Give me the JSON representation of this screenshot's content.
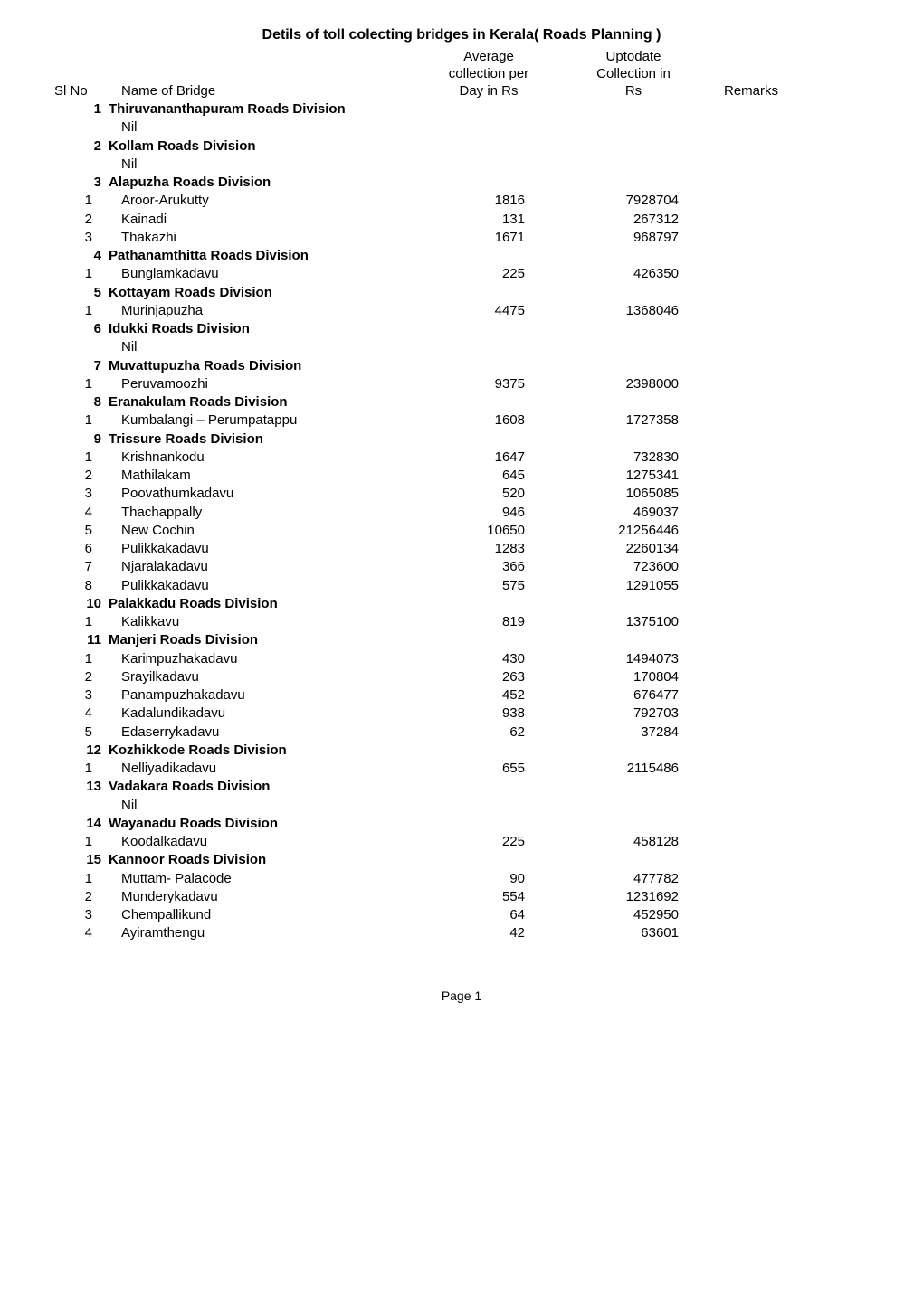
{
  "title": "Detils of toll colecting bridges in Kerala( Roads Planning )",
  "headers": {
    "slno": "Sl No",
    "name": "Name of Bridge",
    "avg_l1": "Average",
    "avg_l2": "collection per",
    "avg_l3": "Day in Rs",
    "upd_l1": "Uptodate",
    "upd_l2": "Collection in",
    "upd_l3": "Rs",
    "remarks": "Remarks"
  },
  "nil_label": "Nil",
  "footer": "Page 1",
  "sections": [
    {
      "num": "1",
      "name": "Thiruvananthapuram Roads Division",
      "nil": true,
      "rows": []
    },
    {
      "num": "2",
      "name": "Kollam Roads Division",
      "nil": true,
      "rows": []
    },
    {
      "num": "3",
      "name": "Alapuzha Roads Division",
      "nil": false,
      "rows": [
        {
          "n": "1",
          "name": "Aroor-Arukutty",
          "avg": "1816",
          "upd": "7928704"
        },
        {
          "n": "2",
          "name": "Kainadi",
          "avg": "131",
          "upd": "267312"
        },
        {
          "n": "3",
          "name": "Thakazhi",
          "avg": "1671",
          "upd": "968797"
        }
      ]
    },
    {
      "num": "4",
      "name": "Pathanamthitta Roads Division",
      "nil": false,
      "rows": [
        {
          "n": "1",
          "name": "Bunglamkadavu",
          "avg": "225",
          "upd": "426350"
        }
      ]
    },
    {
      "num": "5",
      "name": "Kottayam Roads Division",
      "nil": false,
      "rows": [
        {
          "n": "1",
          "name": "Murinjapuzha",
          "avg": "4475",
          "upd": "1368046"
        }
      ]
    },
    {
      "num": "6",
      "name": "Idukki Roads Division",
      "nil": true,
      "rows": []
    },
    {
      "num": "7",
      "name": "Muvattupuzha Roads Division",
      "nil": false,
      "rows": [
        {
          "n": "1",
          "name": "Peruvamoozhi",
          "avg": "9375",
          "upd": "2398000"
        }
      ]
    },
    {
      "num": "8",
      "name": "Eranakulam Roads Division",
      "nil": false,
      "rows": [
        {
          "n": "1",
          "name": "Kumbalangi – Perumpatappu",
          "avg": "1608",
          "upd": "1727358"
        }
      ]
    },
    {
      "num": "9",
      "name": "Trissure Roads Division",
      "nil": false,
      "rows": [
        {
          "n": "1",
          "name": "Krishnankodu",
          "avg": "1647",
          "upd": "732830"
        },
        {
          "n": "2",
          "name": "Mathilakam",
          "avg": "645",
          "upd": "1275341"
        },
        {
          "n": "3",
          "name": "Poovathumkadavu",
          "avg": "520",
          "upd": "1065085"
        },
        {
          "n": "4",
          "name": "Thachappally",
          "avg": "946",
          "upd": "469037"
        },
        {
          "n": "5",
          "name": "New Cochin",
          "avg": "10650",
          "upd": "21256446"
        },
        {
          "n": "6",
          "name": "Pulikkakadavu",
          "avg": "1283",
          "upd": "2260134"
        },
        {
          "n": "7",
          "name": "Njaralakadavu",
          "avg": "366",
          "upd": "723600"
        },
        {
          "n": "8",
          "name": "Pulikkakadavu",
          "avg": "575",
          "upd": "1291055"
        }
      ]
    },
    {
      "num": "10",
      "name": "Palakkadu Roads Division",
      "nil": false,
      "rows": [
        {
          "n": "1",
          "name": "Kalikkavu",
          "avg": "819",
          "upd": "1375100"
        }
      ]
    },
    {
      "num": "11",
      "name": "Manjeri Roads Division",
      "nil": false,
      "rows": [
        {
          "n": "1",
          "name": "Karimpuzhakadavu",
          "avg": "430",
          "upd": "1494073"
        },
        {
          "n": "2",
          "name": "Srayilkadavu",
          "avg": "263",
          "upd": "170804"
        },
        {
          "n": "3",
          "name": "Panampuzhakadavu",
          "avg": "452",
          "upd": "676477"
        },
        {
          "n": "4",
          "name": "Kadalundikadavu",
          "avg": "938",
          "upd": "792703"
        },
        {
          "n": "5",
          "name": "Edaserrykadavu",
          "avg": "62",
          "upd": "37284"
        }
      ]
    },
    {
      "num": "12",
      "name": "Kozhikkode Roads Division",
      "nil": false,
      "rows": [
        {
          "n": "1",
          "name": "Nelliyadikadavu",
          "avg": "655",
          "upd": "2115486"
        }
      ]
    },
    {
      "num": "13",
      "name": "Vadakara Roads Division",
      "nil": true,
      "rows": []
    },
    {
      "num": "14",
      "name": "Wayanadu Roads Division",
      "nil": false,
      "rows": [
        {
          "n": "1",
          "name": "Koodalkadavu",
          "avg": "225",
          "upd": "458128"
        }
      ]
    },
    {
      "num": "15",
      "name": "Kannoor Roads Division",
      "nil": false,
      "rows": [
        {
          "n": "1",
          "name": "Muttam- Palacode",
          "avg": "90",
          "upd": "477782"
        },
        {
          "n": "2",
          "name": "Munderykadavu",
          "avg": "554",
          "upd": "1231692"
        },
        {
          "n": "3",
          "name": "Chempallikund",
          "avg": "64",
          "upd": "452950"
        },
        {
          "n": "4",
          "name": "Ayiramthengu",
          "avg": "42",
          "upd": "63601"
        }
      ]
    }
  ]
}
